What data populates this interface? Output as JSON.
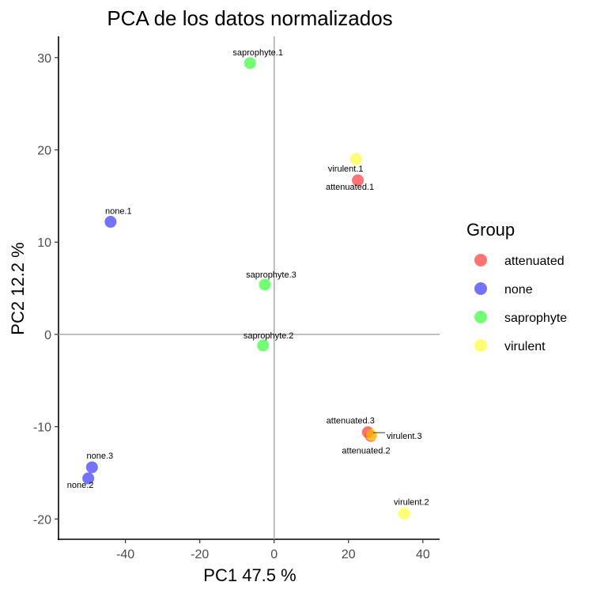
{
  "chart_data": {
    "type": "scatter",
    "title": "PCA de los datos normalizados",
    "xlabel": "PC1 47.5 %",
    "ylabel": "PC2 12.2 %",
    "xlim": [
      -58,
      44.5
    ],
    "ylim": [
      -22.2,
      32.3
    ],
    "x_ticks": [
      -40,
      -20,
      0,
      20,
      40
    ],
    "y_ticks": [
      -20,
      -10,
      0,
      10,
      20,
      30
    ],
    "reference_lines": {
      "x": 0,
      "y": 0
    },
    "grid": false,
    "legend": {
      "title": "Group",
      "position": "right",
      "entries": [
        "attenuated",
        "none",
        "saprophyte",
        "virulent"
      ]
    },
    "colors": {
      "attenuated": "#ff0000",
      "none": "#0000ff",
      "saprophyte": "#00ff00",
      "virulent": "#ffff00"
    },
    "points": [
      {
        "label": "saprophyte.1",
        "group": "saprophyte",
        "x": -6.5,
        "y": 29.4
      },
      {
        "label": "virulent.1",
        "group": "virulent",
        "x": 22,
        "y": 19
      },
      {
        "label": "attenuated.1",
        "group": "attenuated",
        "x": 22.5,
        "y": 16.7
      },
      {
        "label": "none.1",
        "group": "none",
        "x": -44,
        "y": 12.2
      },
      {
        "label": "saprophyte.3",
        "group": "saprophyte",
        "x": -2.5,
        "y": 5.4
      },
      {
        "label": "saprophyte.2",
        "group": "saprophyte",
        "x": -3,
        "y": -1.2
      },
      {
        "label": "attenuated.3",
        "group": "attenuated",
        "x": 25.2,
        "y": -10.6
      },
      {
        "label": "virulent.3",
        "group": "virulent",
        "x": 26.2,
        "y": -10.9
      },
      {
        "label": "attenuated.2",
        "group": "attenuated",
        "x": 26,
        "y": -11
      },
      {
        "label": "none.3",
        "group": "none",
        "x": -49,
        "y": -14.4
      },
      {
        "label": "none.2",
        "group": "none",
        "x": -50,
        "y": -15.6
      },
      {
        "label": "virulent.2",
        "group": "virulent",
        "x": 35,
        "y": -19.4
      }
    ]
  }
}
